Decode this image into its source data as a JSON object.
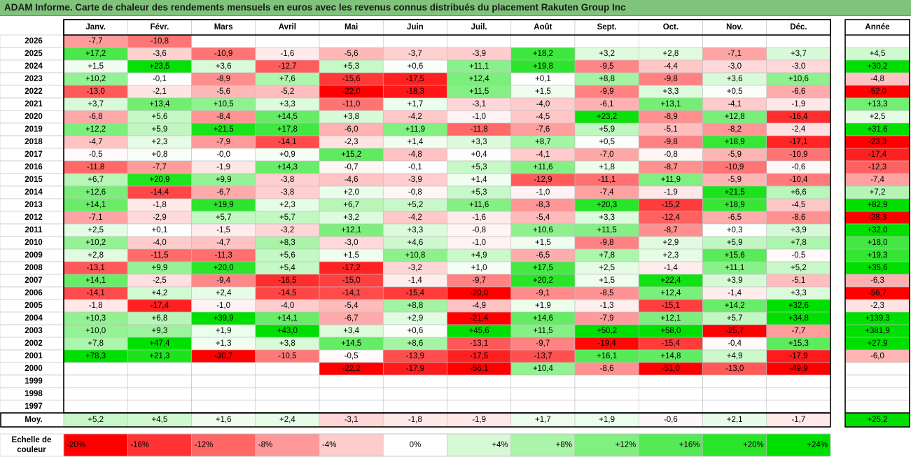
{
  "title": "ADAM Informe. Carte de chaleur des rendements mensuels en euros avec les revenus connus distribués du placement Rakuten Group Inc",
  "colors": {
    "title_bg": "#7fc47a",
    "red_max": "#ff0000",
    "green_max": "#00e000",
    "neutral": "#ffffff",
    "grid": "#bfbfbf",
    "border": "#000000"
  },
  "chart_data": {
    "type": "heatmap",
    "months": [
      "Janv.",
      "Févr.",
      "Mars",
      "Avril",
      "Mai",
      "Juin",
      "Juil.",
      "Août",
      "Sept.",
      "Oct.",
      "Nov.",
      "Déc."
    ],
    "year_header": "Année",
    "rows": [
      {
        "year": "2026",
        "values": [
          "-7,7",
          "-10,8",
          "",
          "",
          "",
          "",
          "",
          "",
          "",
          "",
          "",
          ""
        ],
        "annual": ""
      },
      {
        "year": "2025",
        "values": [
          "+17,2",
          "-3,6",
          "-10,9",
          "-1,6",
          "-5,6",
          "-3,7",
          "-3,9",
          "+18,2",
          "+3,2",
          "+2,8",
          "-7,1",
          "+3,7"
        ],
        "annual": "+4,5"
      },
      {
        "year": "2024",
        "values": [
          "+1,5",
          "+23,5",
          "+3,6",
          "-12,7",
          "+5,3",
          "+0,6",
          "+11,1",
          "+19,8",
          "-9,5",
          "-4,4",
          "-3,0",
          "-3,0"
        ],
        "annual": "+30,2"
      },
      {
        "year": "2023",
        "values": [
          "+10,2",
          "-0,1",
          "-8,9",
          "+7,6",
          "-15,6",
          "-17,5",
          "+12,4",
          "+0,1",
          "+8,8",
          "-9,8",
          "+3,6",
          "+10,6"
        ],
        "annual": "-4,8"
      },
      {
        "year": "2022",
        "values": [
          "-13,0",
          "-2,1",
          "-5,6",
          "-5,2",
          "-22,0",
          "-18,3",
          "+11,5",
          "+1,5",
          "-9,9",
          "+3,3",
          "+0,5",
          "-6,6"
        ],
        "annual": "-52,0"
      },
      {
        "year": "2021",
        "values": [
          "+3,7",
          "+13,4",
          "+10,5",
          "+3,3",
          "-11,0",
          "+1,7",
          "-3,1",
          "-4,0",
          "-6,1",
          "+13,1",
          "-4,1",
          "-1,9"
        ],
        "annual": "+13,3"
      },
      {
        "year": "2020",
        "values": [
          "-6,8",
          "+5,6",
          "-8,4",
          "+14,5",
          "+3,8",
          "-4,2",
          "-1,0",
          "-4,5",
          "+23,2",
          "-8,9",
          "+12,8",
          "-16,4"
        ],
        "annual": "+2,5"
      },
      {
        "year": "2019",
        "values": [
          "+12,2",
          "+5,9",
          "+21,5",
          "+17,8",
          "-6,0",
          "+11,9",
          "-11,8",
          "-7,6",
          "+5,9",
          "-5,1",
          "-8,2",
          "-2,4"
        ],
        "annual": "+31,6"
      },
      {
        "year": "2018",
        "values": [
          "-4,7",
          "+2,3",
          "-7,9",
          "-14,1",
          "-2,3",
          "+1,4",
          "+3,3",
          "+8,7",
          "+0,5",
          "-9,8",
          "+18,9",
          "-17,1"
        ],
        "annual": "-23,3"
      },
      {
        "year": "2017",
        "values": [
          "-0,5",
          "+0,8",
          "-0,0",
          "+0,9",
          "+15,2",
          "-4,8",
          "+0,4",
          "-4,1",
          "-7,0",
          "-0,8",
          "-5,9",
          "-10,9"
        ],
        "annual": "-17,4"
      },
      {
        "year": "2016",
        "values": [
          "-11,8",
          "-7,7",
          "-1,9",
          "+14,3",
          "-0,7",
          "-0,1",
          "+5,3",
          "+11,6",
          "+1,8",
          "-8,7",
          "-10,9",
          "-0,6"
        ],
        "annual": "-12,3"
      },
      {
        "year": "2015",
        "values": [
          "+6,7",
          "+20,9",
          "+9,9",
          "-3,8",
          "-4,6",
          "-3,9",
          "+1,4",
          "-12,9",
          "-11,1",
          "+11,9",
          "-5,9",
          "-10,4"
        ],
        "annual": "-7,4"
      },
      {
        "year": "2014",
        "values": [
          "+12,6",
          "-14,4",
          "-6,7",
          "-3,8",
          "+2,0",
          "-0,8",
          "+5,3",
          "-1,0",
          "-7,4",
          "-1,9",
          "+21,5",
          "+6,6"
        ],
        "annual": "+7,2"
      },
      {
        "year": "2013",
        "values": [
          "+14,1",
          "-1,8",
          "+19,9",
          "+2,3",
          "+6,7",
          "+5,2",
          "+11,6",
          "-8,3",
          "+20,3",
          "-15,2",
          "+18,9",
          "-4,5"
        ],
        "annual": "+82,9"
      },
      {
        "year": "2012",
        "values": [
          "-7,1",
          "-2,9",
          "+5,7",
          "+5,7",
          "+3,2",
          "-4,2",
          "-1,6",
          "-5,4",
          "+3,3",
          "-12,4",
          "-6,5",
          "-8,6"
        ],
        "annual": "-28,3"
      },
      {
        "year": "2011",
        "values": [
          "+2,5",
          "+0,1",
          "-1,5",
          "-3,2",
          "+12,1",
          "+3,3",
          "-0,8",
          "+10,6",
          "+11,5",
          "-8,7",
          "+0,3",
          "+3,9"
        ],
        "annual": "+32,0"
      },
      {
        "year": "2010",
        "values": [
          "+10,2",
          "-4,0",
          "-4,7",
          "+8,3",
          "-3,0",
          "+4,6",
          "-1,0",
          "+1,5",
          "-9,8",
          "+2,9",
          "+5,9",
          "+7,8"
        ],
        "annual": "+18,0"
      },
      {
        "year": "2009",
        "values": [
          "+2,8",
          "-11,5",
          "-11,3",
          "+5,6",
          "+1,5",
          "+10,8",
          "+4,9",
          "-6,5",
          "+7,8",
          "+2,3",
          "+15,6",
          "-0,5"
        ],
        "annual": "+19,3"
      },
      {
        "year": "2008",
        "values": [
          "-13,1",
          "+9,9",
          "+20,0",
          "+5,4",
          "-17,2",
          "-3,2",
          "+1,0",
          "+17,5",
          "+2,5",
          "-1,4",
          "+11,1",
          "+5,2"
        ],
        "annual": "+35,6"
      },
      {
        "year": "2007",
        "values": [
          "+14,1",
          "-2,5",
          "-9,4",
          "-16,5",
          "-15,0",
          "-1,4",
          "-9,7",
          "+20,2",
          "+1,5",
          "+22,4",
          "+3,9",
          "-5,1"
        ],
        "annual": "-6,3"
      },
      {
        "year": "2006",
        "values": [
          "-14,1",
          "+4,2",
          "+2,4",
          "-14,5",
          "-14,1",
          "-15,4",
          "-20,0",
          "-9,1",
          "-8,5",
          "+12,4",
          "-1,4",
          "+3,3"
        ],
        "annual": "-56,7"
      },
      {
        "year": "2005",
        "values": [
          "-1,8",
          "-17,4",
          "-1,0",
          "-4,0",
          "-5,4",
          "+8,8",
          "-4,9",
          "+1,9",
          "-1,3",
          "-15,1",
          "+14,2",
          "+32,6"
        ],
        "annual": "-2,3"
      },
      {
        "year": "2004",
        "values": [
          "+10,3",
          "+6,8",
          "+39,9",
          "+14,1",
          "-6,7",
          "+2,9",
          "-21,4",
          "+14,6",
          "-7,9",
          "+12,1",
          "+5,7",
          "+34,8"
        ],
        "annual": "+139,3"
      },
      {
        "year": "2003",
        "values": [
          "+10,0",
          "+9,3",
          "+1,9",
          "+43,0",
          "+3,4",
          "+0,6",
          "+45,6",
          "+11,5",
          "+50,2",
          "+58,0",
          "-25,7",
          "-7,7"
        ],
        "annual": "+381,9"
      },
      {
        "year": "2002",
        "values": [
          "+7,8",
          "+47,4",
          "+1,3",
          "+3,8",
          "+14,5",
          "+8,6",
          "-13,1",
          "-9,7",
          "-19,4",
          "-15,4",
          "-0,4",
          "+15,3"
        ],
        "annual": "+27,9"
      },
      {
        "year": "2001",
        "values": [
          "+78,3",
          "+21,3",
          "-30,7",
          "-10,5",
          "-0,5",
          "-13,9",
          "-17,5",
          "-13,7",
          "+16,1",
          "+14,8",
          "+4,9",
          "-17,9"
        ],
        "annual": "-6,0"
      },
      {
        "year": "2000",
        "values": [
          "",
          "",
          "",
          "",
          "-22,2",
          "-17,9",
          "-56,1",
          "+10,4",
          "-8,6",
          "-51,0",
          "-13,0",
          "-49,9"
        ],
        "annual": ""
      },
      {
        "year": "1999",
        "values": [
          "",
          "",
          "",
          "",
          "",
          "",
          "",
          "",
          "",
          "",
          "",
          ""
        ],
        "annual": ""
      },
      {
        "year": "1998",
        "values": [
          "",
          "",
          "",
          "",
          "",
          "",
          "",
          "",
          "",
          "",
          "",
          ""
        ],
        "annual": ""
      },
      {
        "year": "1997",
        "values": [
          "",
          "",
          "",
          "",
          "",
          "",
          "",
          "",
          "",
          "",
          "",
          ""
        ],
        "annual": ""
      }
    ],
    "average": {
      "label": "Moy.",
      "values": [
        "+5,2",
        "+4,5",
        "+1,6",
        "+2,4",
        "-3,1",
        "-1,8",
        "-1,9",
        "+1,7",
        "+1,9",
        "-0,6",
        "+2,1",
        "-1,7"
      ],
      "annual": "+25,2"
    },
    "scale": {
      "label_line1": "Echelle de",
      "label_line2": "couleur",
      "steps": [
        {
          "label": "-20%",
          "value": -20
        },
        {
          "label": "-16%",
          "value": -16
        },
        {
          "label": "-12%",
          "value": -12
        },
        {
          "label": "-8%",
          "value": -8
        },
        {
          "label": "-4%",
          "value": -4
        },
        {
          "label": "0%",
          "value": 0
        },
        {
          "label": "+4%",
          "value": 4
        },
        {
          "label": "+8%",
          "value": 8
        },
        {
          "label": "+12%",
          "value": 12
        },
        {
          "label": "+16%",
          "value": 16
        },
        {
          "label": "+20%",
          "value": 20
        },
        {
          "label": "+24%",
          "value": 24
        }
      ]
    }
  }
}
